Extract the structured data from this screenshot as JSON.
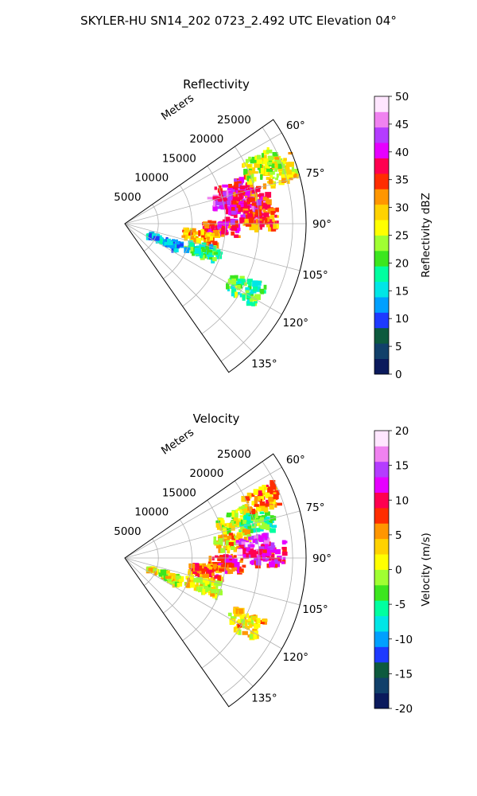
{
  "suptitle": "SKYLER-HU  SN14_202  0723_2.492 UTC Elevation 04°",
  "chart_data": [
    {
      "type": "heatmap",
      "subtype": "polar-sector",
      "title": "Reflectivity",
      "range_label": "Meters",
      "range_ticks": [
        5000,
        10000,
        15000,
        20000,
        25000
      ],
      "range_max": 27000,
      "azimuth_range": [
        55,
        145
      ],
      "azimuth_ticks": [
        "60°",
        "75°",
        "90°",
        "105°",
        "120°",
        "135°"
      ],
      "azimuth_tick_values": [
        60,
        75,
        90,
        105,
        120,
        135
      ],
      "colorbar": {
        "label": "Reflectivity dBZ",
        "min": 0,
        "max": 50,
        "ticks": [
          0,
          5,
          10,
          15,
          20,
          25,
          30,
          35,
          40,
          45,
          50
        ],
        "colors": [
          "#0b1a5c",
          "#11406a",
          "#0d5a3e",
          "#1e3aff",
          "#00a0ff",
          "#00e6e6",
          "#00ffa0",
          "#3ce61e",
          "#a0ff32",
          "#ffff00",
          "#ffd200",
          "#ff9600",
          "#ff2d00",
          "#ff0050",
          "#e600ff",
          "#b43cff",
          "#f082f0",
          "#ffe6ff"
        ]
      },
      "echo_cells": [
        {
          "az": 72,
          "r": 17000,
          "value": 38
        },
        {
          "az": 76,
          "r": 15500,
          "value": 42
        },
        {
          "az": 78,
          "r": 19000,
          "value": 35
        },
        {
          "az": 84,
          "r": 17500,
          "value": 40
        },
        {
          "az": 87,
          "r": 20000,
          "value": 33
        },
        {
          "az": 92,
          "r": 14000,
          "value": 37
        },
        {
          "az": 70,
          "r": 24000,
          "value": 28
        },
        {
          "az": 66,
          "r": 22000,
          "value": 25
        },
        {
          "az": 98,
          "r": 11000,
          "value": 30
        },
        {
          "az": 108,
          "r": 12000,
          "value": 18
        },
        {
          "az": 112,
          "r": 6000,
          "value": 14
        },
        {
          "az": 118,
          "r": 20000,
          "value": 20
        }
      ]
    },
    {
      "type": "heatmap",
      "subtype": "polar-sector",
      "title": "Velocity",
      "range_label": "Meters",
      "range_ticks": [
        5000,
        10000,
        15000,
        20000,
        25000
      ],
      "range_max": 27000,
      "azimuth_range": [
        55,
        145
      ],
      "azimuth_ticks": [
        "60°",
        "75°",
        "90°",
        "105°",
        "120°",
        "135°"
      ],
      "azimuth_tick_values": [
        60,
        75,
        90,
        105,
        120,
        135
      ],
      "colorbar": {
        "label": "Velocity (m/s)",
        "min": -20,
        "max": 20,
        "ticks": [
          -20,
          -15,
          -10,
          -5,
          0,
          5,
          10,
          15,
          20
        ],
        "colors": [
          "#0b1a5c",
          "#11406a",
          "#0d5a3e",
          "#1e3aff",
          "#00a0ff",
          "#00e6e6",
          "#00ffa0",
          "#3ce61e",
          "#a0ff32",
          "#ffff00",
          "#ffd200",
          "#ff9600",
          "#ff2d00",
          "#ff0050",
          "#e600ff",
          "#b43cff",
          "#f082f0",
          "#ffe6ff"
        ]
      },
      "echo_cells": [
        {
          "az": 70,
          "r": 17000,
          "value": 0
        },
        {
          "az": 74,
          "r": 20000,
          "value": -4
        },
        {
          "az": 66,
          "r": 22000,
          "value": 5
        },
        {
          "az": 80,
          "r": 16000,
          "value": 3
        },
        {
          "az": 84,
          "r": 19000,
          "value": 14
        },
        {
          "az": 88,
          "r": 21000,
          "value": 11
        },
        {
          "az": 92,
          "r": 15000,
          "value": 9
        },
        {
          "az": 98,
          "r": 12000,
          "value": 7
        },
        {
          "az": 108,
          "r": 12000,
          "value": 2
        },
        {
          "az": 112,
          "r": 6000,
          "value": 1
        },
        {
          "az": 118,
          "r": 20000,
          "value": 3
        }
      ]
    }
  ]
}
